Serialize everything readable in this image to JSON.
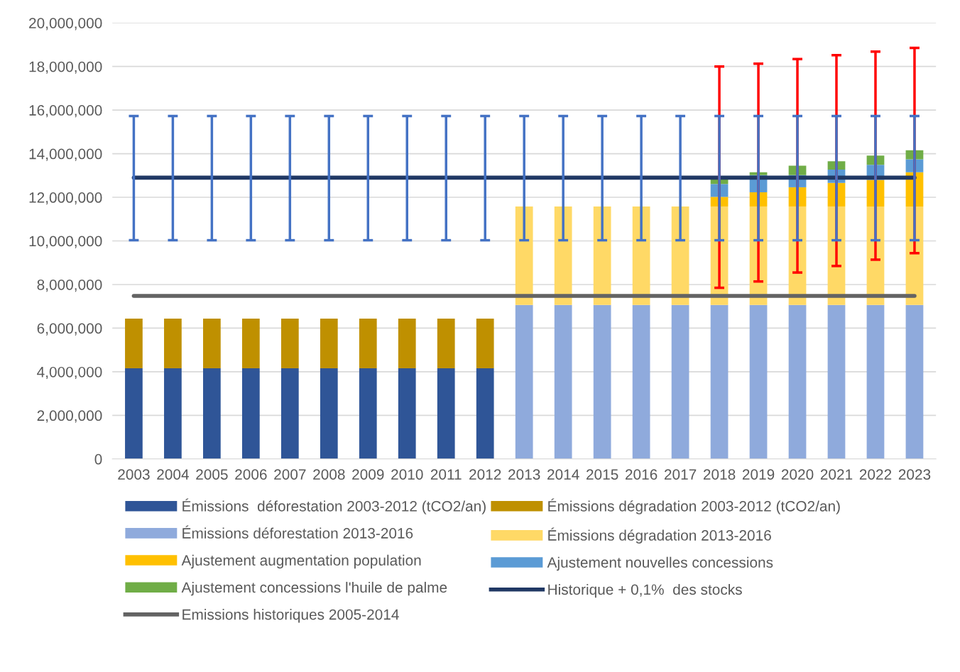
{
  "chart_data": {
    "type": "bar",
    "stacked": true,
    "categories": [
      "2003",
      "2004",
      "2005",
      "2006",
      "2007",
      "2008",
      "2009",
      "2010",
      "2011",
      "2012",
      "2013",
      "2014",
      "2015",
      "2016",
      "2017",
      "2018",
      "2019",
      "2020",
      "2021",
      "2022",
      "2023"
    ],
    "series": [
      {
        "name": "Émissions  déforestation 2003-2012 (tCO2/an)",
        "color": "#2f5597",
        "values": [
          4160000,
          4160000,
          4160000,
          4160000,
          4160000,
          4160000,
          4160000,
          4160000,
          4160000,
          4160000,
          null,
          null,
          null,
          null,
          null,
          null,
          null,
          null,
          null,
          null,
          null
        ]
      },
      {
        "name": "Émissions dégradation 2003-2012 (tCO2/an)",
        "color": "#bf9000",
        "values": [
          2280000,
          2280000,
          2280000,
          2280000,
          2280000,
          2280000,
          2280000,
          2280000,
          2280000,
          2280000,
          null,
          null,
          null,
          null,
          null,
          null,
          null,
          null,
          null,
          null,
          null
        ]
      },
      {
        "name": "Émissions déforestation 2013-2016",
        "color": "#8faadc",
        "values": [
          null,
          null,
          null,
          null,
          null,
          null,
          null,
          null,
          null,
          null,
          7060000,
          7060000,
          7060000,
          7060000,
          7060000,
          7060000,
          7060000,
          7060000,
          7060000,
          7060000,
          7060000
        ]
      },
      {
        "name": "Émissions dégradation 2013-2016",
        "color": "#ffd966",
        "values": [
          null,
          null,
          null,
          null,
          null,
          null,
          null,
          null,
          null,
          null,
          4520000,
          4520000,
          4520000,
          4520000,
          4520000,
          4520000,
          4520000,
          4520000,
          4520000,
          4520000,
          4520000
        ]
      },
      {
        "name": "Ajustement augmentation population",
        "color": "#ffc000",
        "values": [
          null,
          null,
          null,
          null,
          null,
          null,
          null,
          null,
          null,
          null,
          null,
          null,
          null,
          null,
          null,
          440000,
          650000,
          880000,
          1080000,
          1220000,
          1570000
        ]
      },
      {
        "name": "Ajustement nouvelles concessions",
        "color": "#5b9bd5",
        "values": [
          null,
          null,
          null,
          null,
          null,
          null,
          null,
          null,
          null,
          null,
          null,
          null,
          null,
          null,
          null,
          590000,
          790000,
          560000,
          610000,
          690000,
          590000
        ]
      },
      {
        "name": "Ajustement concessions l'huile de palme",
        "color": "#70ad47",
        "values": [
          null,
          null,
          null,
          null,
          null,
          null,
          null,
          null,
          null,
          null,
          null,
          null,
          null,
          null,
          null,
          250000,
          130000,
          430000,
          380000,
          420000,
          420000
        ],
        "errors": [
          null,
          null,
          null,
          null,
          null,
          null,
          null,
          null,
          null,
          null,
          null,
          null,
          null,
          null,
          null,
          [
            7850000,
            18000000
          ],
          [
            8140000,
            18130000
          ],
          [
            8550000,
            18340000
          ],
          [
            8850000,
            18520000
          ],
          [
            9140000,
            18680000
          ],
          [
            9440000,
            18850000
          ]
        ]
      },
      {
        "name": "Historique + 0,1%  des stocks",
        "type": "line",
        "color": "#203864",
        "values": [
          12900000,
          12900000,
          12900000,
          12900000,
          12900000,
          12900000,
          12900000,
          12900000,
          12900000,
          12900000,
          12900000,
          12900000,
          12900000,
          12900000,
          12900000,
          12900000,
          12900000,
          12900000,
          12900000,
          12900000,
          12900000
        ],
        "errors": [
          [
            10030000,
            15730000
          ],
          [
            10030000,
            15730000
          ],
          [
            10030000,
            15730000
          ],
          [
            10030000,
            15730000
          ],
          [
            10030000,
            15730000
          ],
          [
            10030000,
            15730000
          ],
          [
            10030000,
            15730000
          ],
          [
            10030000,
            15730000
          ],
          [
            10030000,
            15730000
          ],
          [
            10030000,
            15730000
          ],
          [
            10030000,
            15730000
          ],
          [
            10030000,
            15730000
          ],
          [
            10030000,
            15730000
          ],
          [
            10030000,
            15730000
          ],
          [
            10030000,
            15730000
          ],
          [
            10030000,
            15730000
          ],
          [
            10030000,
            15730000
          ],
          [
            10030000,
            15730000
          ],
          [
            10030000,
            15730000
          ],
          [
            10030000,
            15730000
          ],
          [
            10030000,
            15730000
          ]
        ]
      },
      {
        "name": "Emissions historiques 2005-2014",
        "type": "line",
        "color": "#636363",
        "values": [
          7480000,
          7480000,
          7480000,
          7480000,
          7480000,
          7480000,
          7480000,
          7480000,
          7480000,
          7480000,
          7480000,
          7480000,
          7480000,
          7480000,
          7480000,
          7480000,
          7480000,
          7480000,
          7480000,
          7480000,
          7480000
        ]
      }
    ],
    "ylim": [
      0,
      20000000
    ],
    "yticks": [
      {
        "value": 0,
        "label": "0"
      },
      {
        "value": 2000000,
        "label": "2,000,000"
      },
      {
        "value": 4000000,
        "label": "4,000,000"
      },
      {
        "value": 6000000,
        "label": "6,000,000"
      },
      {
        "value": 8000000,
        "label": "8,000,000"
      },
      {
        "value": 10000000,
        "label": "10,000,000"
      },
      {
        "value": 12000000,
        "label": "12,000,000"
      },
      {
        "value": 14000000,
        "label": "14,000,000"
      },
      {
        "value": 16000000,
        "label": "16,000,000"
      },
      {
        "value": 18000000,
        "label": "18,000,000"
      },
      {
        "value": 20000000,
        "label": "20,000,000"
      }
    ],
    "grid": "y",
    "legend": "bottom",
    "marker": "none"
  }
}
